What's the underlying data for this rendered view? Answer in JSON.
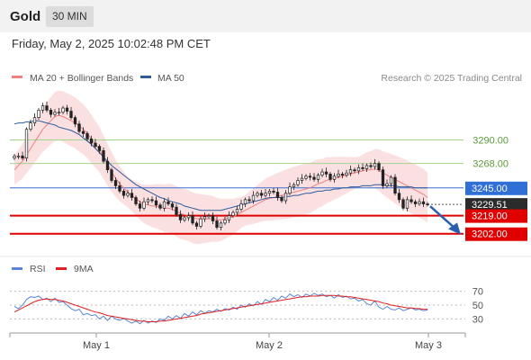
{
  "header": {
    "instrument": "Gold",
    "interval": "30 MIN"
  },
  "timestamp": "Friday, May 2, 2025 10:02:48 PM CET",
  "legend": {
    "items": [
      {
        "label": "MA 20 + Bollinger Bands",
        "color": "#f08080"
      },
      {
        "label": "MA 50",
        "color": "#2f5b9c"
      }
    ],
    "credit": "Research © 2025 Trading Central"
  },
  "rsi_legend": {
    "items": [
      {
        "label": "RSI",
        "color": "#5b86d6"
      },
      {
        "label": "9MA",
        "color": "#e02020"
      }
    ]
  },
  "colors": {
    "resistance_green": "#a6d38b",
    "ma50_line": "#3a6fcf",
    "support_red": "#e00000",
    "band_fill": "#fadadd",
    "arrow": "#2a5fb0",
    "up_candle": "#ffffff",
    "candle_stroke": "#222222"
  },
  "chart_data": [
    {
      "type": "candlestick",
      "y_axis_ticks": [],
      "price_levels": [
        {
          "label": "3290.00",
          "value": 3290.0,
          "kind": "resistance"
        },
        {
          "label": "3268.00",
          "value": 3268.0,
          "kind": "resistance"
        },
        {
          "label": "3245.00",
          "value": 3245.0,
          "kind": "pivot"
        },
        {
          "label": "3229.51",
          "value": 3229.51,
          "kind": "last-price"
        },
        {
          "label": "3219.00",
          "value": 3219.0,
          "kind": "support"
        },
        {
          "label": "3202.00",
          "value": 3202.0,
          "kind": "support"
        }
      ],
      "x_ticks": [
        "May 1",
        "May 2",
        "May 3"
      ],
      "close_series": [
        3275,
        3275,
        3273,
        3300,
        3306,
        3311,
        3318,
        3322,
        3318,
        3314,
        3316,
        3316,
        3320,
        3317,
        3311,
        3305,
        3298,
        3296,
        3291,
        3287,
        3284,
        3280,
        3270,
        3262,
        3252,
        3247,
        3242,
        3238,
        3240,
        3236,
        3230,
        3226,
        3232,
        3234,
        3233,
        3229,
        3226,
        3232,
        3230,
        3227,
        3220,
        3215,
        3217,
        3219,
        3212,
        3209,
        3216,
        3218,
        3219,
        3214,
        3208,
        3212,
        3215,
        3219,
        3222,
        3225,
        3230,
        3234,
        3233,
        3238,
        3240,
        3238,
        3240,
        3242,
        3241,
        3236,
        3233,
        3240,
        3246,
        3248,
        3252,
        3254,
        3256,
        3255,
        3253,
        3257,
        3260,
        3258,
        3253,
        3256,
        3258,
        3257,
        3259,
        3262,
        3261,
        3264,
        3263,
        3266,
        3265,
        3268,
        3262,
        3247,
        3249,
        3255,
        3240,
        3234,
        3226,
        3234,
        3232,
        3230,
        3232,
        3230,
        3229.5
      ],
      "ma20": [
        3262,
        3266,
        3270,
        3276,
        3282,
        3288,
        3294,
        3300,
        3304,
        3308,
        3312,
        3313,
        3312,
        3310,
        3308,
        3306,
        3303,
        3300,
        3296,
        3291,
        3286,
        3281,
        3274,
        3267,
        3260,
        3254,
        3249,
        3245,
        3241,
        3238,
        3235,
        3232,
        3230,
        3229,
        3228,
        3228,
        3227,
        3226,
        3226,
        3225,
        3223,
        3221,
        3220,
        3219,
        3217,
        3216,
        3216,
        3216,
        3216,
        3216,
        3215,
        3215,
        3216,
        3217,
        3218,
        3220,
        3222,
        3224,
        3226,
        3228,
        3230,
        3232,
        3234,
        3235,
        3236,
        3237,
        3238,
        3239,
        3240,
        3241,
        3242,
        3243,
        3244,
        3245,
        3247,
        3249,
        3250,
        3252,
        3253,
        3254,
        3255,
        3256,
        3257,
        3258,
        3259,
        3260,
        3261,
        3262,
        3262,
        3263,
        3262,
        3259,
        3257,
        3255,
        3253,
        3251,
        3249,
        3247,
        3245,
        3243,
        3241,
        3239,
        3236
      ],
      "ma50": [
        3305,
        3306,
        3306,
        3307,
        3307,
        3308,
        3308,
        3307,
        3306,
        3305,
        3304,
        3302,
        3301,
        3300,
        3299,
        3297,
        3295,
        3292,
        3289,
        3286,
        3282,
        3278,
        3274,
        3270,
        3266,
        3263,
        3260,
        3257,
        3254,
        3251,
        3248,
        3246,
        3244,
        3242,
        3240,
        3238,
        3236,
        3235,
        3233,
        3232,
        3231,
        3230,
        3228,
        3227,
        3226,
        3225,
        3224,
        3224,
        3224,
        3224,
        3224,
        3224,
        3225,
        3226,
        3227,
        3228,
        3229,
        3230,
        3231,
        3232,
        3233,
        3234,
        3235,
        3236,
        3236,
        3236,
        3236,
        3237,
        3237,
        3238,
        3238,
        3239,
        3240,
        3240,
        3241,
        3242,
        3242,
        3243,
        3243,
        3244,
        3244,
        3245,
        3245,
        3246,
        3246,
        3246,
        3247,
        3247,
        3247,
        3248,
        3248,
        3248,
        3247,
        3247,
        3247,
        3246,
        3246,
        3246,
        3246,
        3245,
        3245,
        3245,
        3245
      ]
    },
    {
      "type": "line",
      "title": "RSI",
      "y_ticks": [
        70,
        50,
        30
      ],
      "ylim": [
        15,
        85
      ],
      "series": [
        {
          "name": "RSI",
          "values": [
            48,
            45,
            50,
            58,
            62,
            61,
            63,
            58,
            60,
            55,
            60,
            54,
            55,
            50,
            45,
            42,
            44,
            36,
            38,
            35,
            36,
            30,
            34,
            28,
            34,
            30,
            28,
            31,
            27,
            24,
            27,
            23,
            28,
            24,
            27,
            25,
            30,
            28,
            34,
            30,
            35,
            31,
            38,
            34,
            40,
            36,
            42,
            38,
            42,
            40,
            44,
            41,
            45,
            43,
            47,
            44,
            50,
            47,
            52,
            49,
            55,
            51,
            58,
            55,
            61,
            57,
            63,
            60,
            66,
            62,
            65,
            61,
            66,
            63,
            67,
            64,
            66,
            62,
            64,
            60,
            65,
            61,
            63,
            59,
            60,
            56,
            58,
            52,
            50,
            56,
            47,
            44,
            48,
            44,
            43,
            46,
            42,
            44,
            46,
            43,
            44,
            42,
            43
          ]
        },
        {
          "name": "9MA",
          "values": [
            40,
            43,
            46,
            49,
            52,
            55,
            57,
            58,
            59,
            58,
            58,
            57,
            56,
            54,
            52,
            50,
            48,
            46,
            44,
            42,
            40,
            39,
            37,
            35,
            34,
            33,
            32,
            31,
            30,
            29,
            28,
            27,
            27,
            26,
            26,
            26,
            27,
            27,
            28,
            29,
            30,
            31,
            32,
            33,
            34,
            35,
            37,
            38,
            39,
            40,
            41,
            42,
            43,
            44,
            45,
            46,
            47,
            48,
            49,
            50,
            51,
            52,
            53,
            54,
            55,
            56,
            57,
            58,
            59,
            60,
            61,
            62,
            62,
            63,
            63,
            63,
            64,
            64,
            64,
            64,
            63,
            63,
            62,
            62,
            61,
            60,
            59,
            58,
            57,
            56,
            55,
            53,
            52,
            50,
            49,
            48,
            47,
            46,
            46,
            45,
            45,
            44,
            44
          ]
        }
      ]
    }
  ]
}
